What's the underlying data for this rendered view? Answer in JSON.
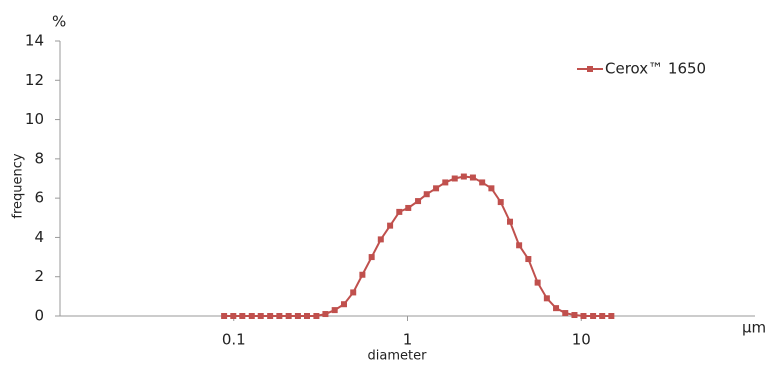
{
  "chart_data": {
    "type": "line",
    "x_unit": "μm",
    "y_unit": "%",
    "x_label": "diameter",
    "y_label": "frequency",
    "xlog": true,
    "grid": false,
    "legend": "upper right",
    "xlim": [
      0.01,
      100
    ],
    "xticks": [
      0.1,
      1,
      10
    ],
    "ylim": [
      0,
      14
    ],
    "yticks": [
      0,
      2,
      4,
      6,
      8,
      10,
      12,
      14
    ],
    "x": [
      0.088,
      0.0994,
      0.112,
      0.127,
      0.143,
      0.162,
      0.183,
      0.207,
      0.234,
      0.264,
      0.299,
      0.337,
      0.381,
      0.431,
      0.487,
      0.55,
      0.622,
      0.702,
      0.794,
      0.897,
      1.01,
      1.15,
      1.29,
      1.46,
      1.65,
      1.87,
      2.11,
      2.38,
      2.69,
      3.04,
      3.44,
      3.89,
      4.39,
      4.96,
      5.61,
      6.34,
      7.16,
      8.09,
      9.14,
      10.3,
      11.7,
      13.2,
      14.9
    ],
    "series": [
      {
        "name": "Cerox™ 1650",
        "color": "#c0504d",
        "values": [
          0,
          0,
          0,
          0,
          0,
          0,
          0,
          0,
          0,
          0,
          0,
          0.1,
          0.3,
          0.6,
          1.2,
          2.1,
          3.0,
          3.9,
          4.6,
          5.3,
          5.5,
          5.85,
          6.2,
          6.5,
          6.8,
          7.0,
          7.1,
          7.05,
          6.8,
          6.5,
          5.8,
          4.8,
          3.6,
          2.9,
          1.7,
          0.9,
          0.4,
          0.15,
          0.05,
          0,
          0,
          0,
          0
        ]
      }
    ]
  }
}
